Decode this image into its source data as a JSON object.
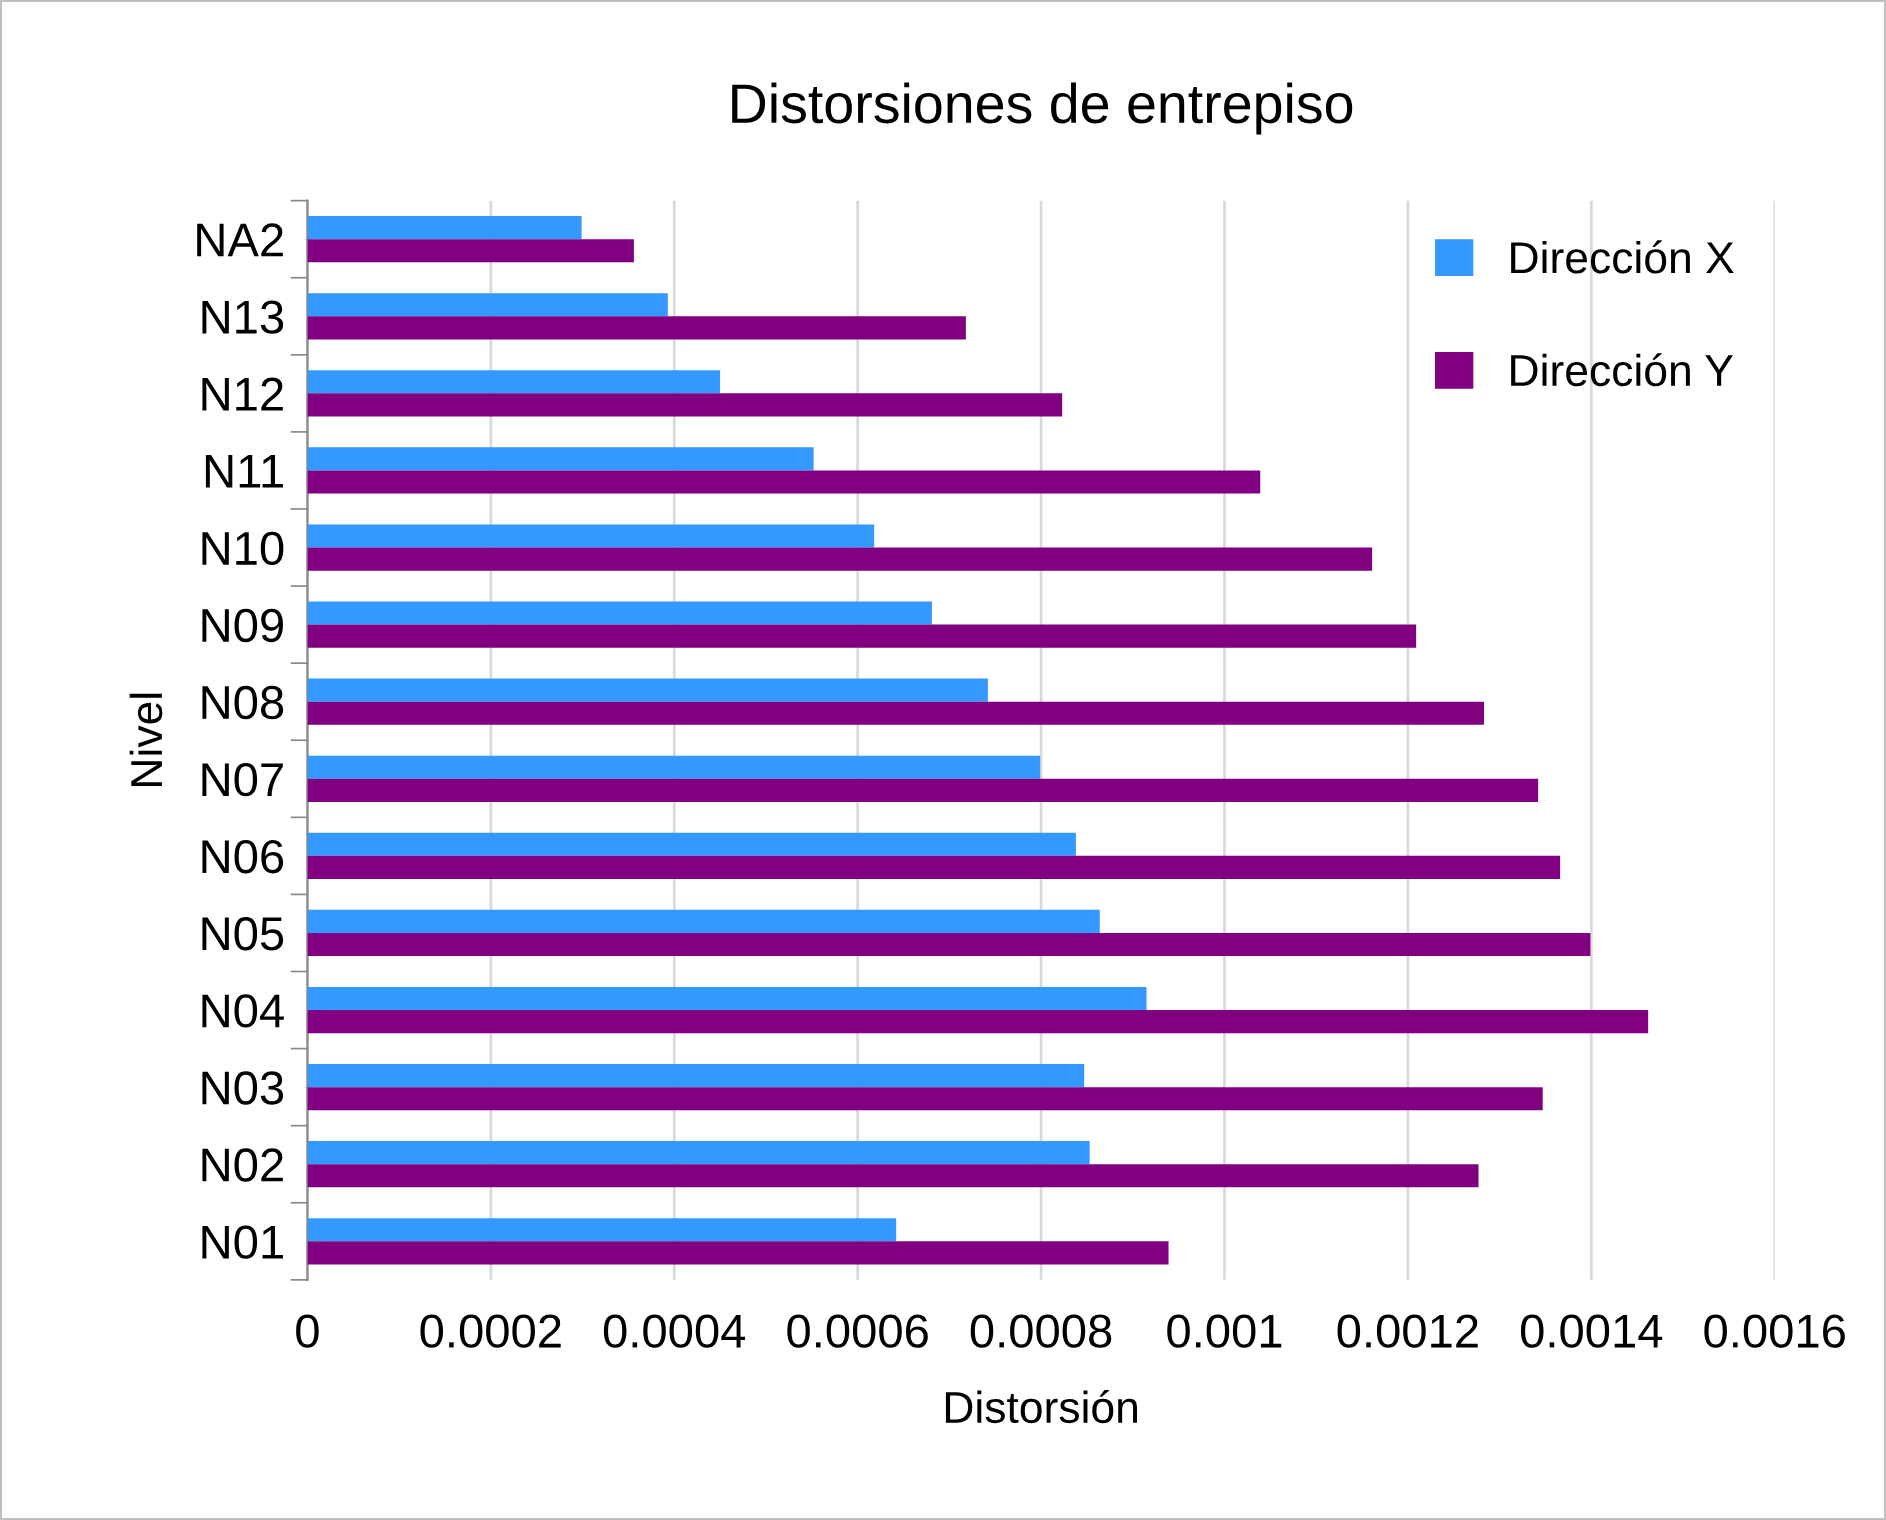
{
  "chart_data": {
    "type": "bar",
    "orientation": "horizontal",
    "title": "Distorsiones de entrepiso",
    "xlabel": "Distorsión",
    "ylabel": "Nivel",
    "categories": [
      "NA2",
      "N13",
      "N12",
      "N11",
      "N10",
      "N09",
      "N08",
      "N07",
      "N06",
      "N05",
      "N04",
      "N03",
      "N02",
      "N01"
    ],
    "series": [
      {
        "name": "Dirección X",
        "color": "#3399ff",
        "values": [
          0.000299,
          0.000393,
          0.00045,
          0.000552,
          0.000618,
          0.000681,
          0.000742,
          0.000799,
          0.000838,
          0.000864,
          0.000915,
          0.000847,
          0.000853,
          0.000642
        ]
      },
      {
        "name": "Dirección Y",
        "color": "#800080",
        "values": [
          0.000356,
          0.000718,
          0.000823,
          0.001039,
          0.001161,
          0.001209,
          0.001283,
          0.001342,
          0.001366,
          0.001399,
          0.001462,
          0.001347,
          0.001277,
          0.000939
        ]
      }
    ],
    "xlim": [
      0,
      0.0016
    ],
    "xticks": [
      0,
      0.0002,
      0.0004,
      0.0006,
      0.0008,
      0.001,
      0.0012,
      0.0014,
      0.0016
    ],
    "grid": "x",
    "legend": "top right"
  }
}
